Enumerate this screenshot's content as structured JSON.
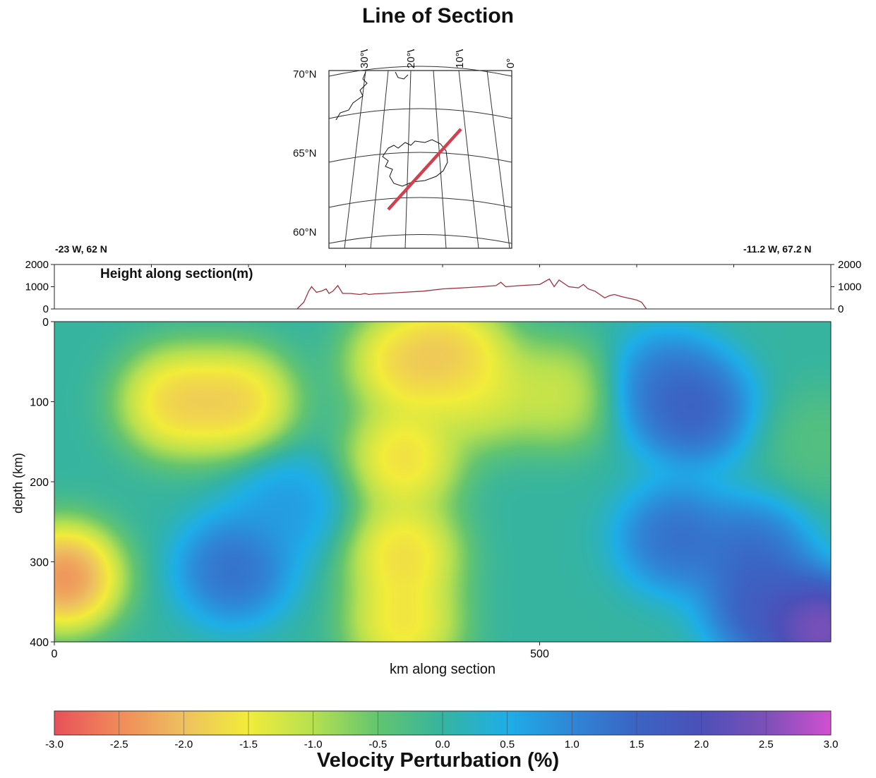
{
  "map": {
    "title": "Line of Section",
    "lon_labels": [
      "30°W",
      "20°W",
      "10°W",
      "0°"
    ],
    "lat_labels": [
      "70°N",
      "65°N",
      "60°N"
    ],
    "section_color": "#d2404f"
  },
  "endpoints": {
    "start": "-23 W, 62 N",
    "end": "-11.2 W, 67.2 N"
  },
  "chart_data": [
    {
      "type": "line",
      "title": "Height along section(m)",
      "xlabel": "",
      "ylabel": "",
      "xlim": [
        0,
        800
      ],
      "ylim": [
        0,
        2000
      ],
      "yticks": [
        0,
        1000,
        2000
      ],
      "color": "#a0303a",
      "series": [
        {
          "x": [
            250,
            257,
            262,
            265,
            270,
            275,
            280,
            283,
            287,
            292,
            297,
            305,
            315,
            320,
            324,
            330,
            340,
            360,
            380,
            400,
            420,
            440,
            455,
            460,
            465,
            480,
            500,
            510,
            515,
            520,
            530,
            540,
            545,
            550,
            557,
            562,
            567,
            572,
            577,
            585,
            595,
            600,
            605,
            610
          ],
          "values": [
            0,
            300,
            800,
            1000,
            750,
            800,
            900,
            700,
            800,
            1050,
            700,
            700,
            650,
            700,
            650,
            680,
            700,
            750,
            800,
            900,
            950,
            1000,
            1050,
            1200,
            1000,
            1050,
            1100,
            1350,
            1000,
            1300,
            1000,
            950,
            1100,
            900,
            800,
            650,
            500,
            600,
            650,
            550,
            450,
            400,
            300,
            0
          ]
        }
      ]
    },
    {
      "type": "heatmap",
      "title": "",
      "xlabel": "km along section",
      "ylabel": "depth (km)",
      "xlim": [
        0,
        800
      ],
      "ylim": [
        400,
        0
      ],
      "xticks": [
        0,
        500
      ],
      "yticks": [
        0,
        100,
        200,
        300,
        400
      ],
      "colorbar": {
        "label": "Velocity Perturbation (%)",
        "range": [
          -3.0,
          3.0
        ],
        "ticks": [
          "-3.0",
          "-2.5",
          "-2.0",
          "-1.5",
          "-1.0",
          "-0.5",
          "0.0",
          "0.5",
          "1.0",
          "1.5",
          "2.0",
          "2.5",
          "3.0"
        ],
        "colors": [
          "#e8505a",
          "#f08a5a",
          "#eec060",
          "#f2ec3a",
          "#b6e050",
          "#62c470",
          "#36b4a0",
          "#1eaee8",
          "#2f86d6",
          "#3b64c4",
          "#4c50b8",
          "#7c50b8",
          "#d050d0"
        ]
      },
      "blobs": [
        {
          "x": 10,
          "y": 320,
          "v": -2.8
        },
        {
          "x": 125,
          "y": 100,
          "v": -2.0
        },
        {
          "x": 190,
          "y": 100,
          "v": -2.0
        },
        {
          "x": 360,
          "y": 50,
          "v": -1.9
        },
        {
          "x": 360,
          "y": 170,
          "v": -1.9
        },
        {
          "x": 360,
          "y": 290,
          "v": -1.9
        },
        {
          "x": 360,
          "y": 380,
          "v": -1.8
        },
        {
          "x": 410,
          "y": 40,
          "v": -2.0
        },
        {
          "x": 440,
          "y": 90,
          "v": -1.4
        },
        {
          "x": 520,
          "y": 90,
          "v": -1.3
        },
        {
          "x": 185,
          "y": 310,
          "v": 1.5
        },
        {
          "x": 240,
          "y": 230,
          "v": 0.8
        },
        {
          "x": 630,
          "y": 80,
          "v": 1.3
        },
        {
          "x": 660,
          "y": 110,
          "v": 1.7
        },
        {
          "x": 640,
          "y": 270,
          "v": 1.5
        },
        {
          "x": 720,
          "y": 290,
          "v": 1.5
        },
        {
          "x": 730,
          "y": 360,
          "v": 1.8
        },
        {
          "x": 790,
          "y": 385,
          "v": 2.9
        },
        {
          "x": 790,
          "y": 150,
          "v": -0.4
        }
      ]
    }
  ]
}
